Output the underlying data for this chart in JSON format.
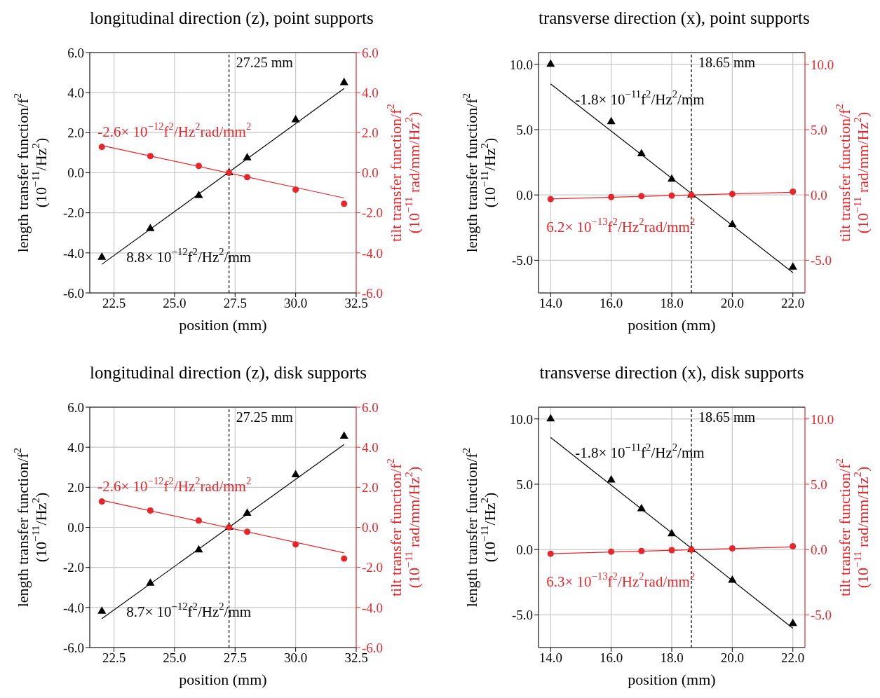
{
  "chart_data": [
    {
      "type": "scatter",
      "title": "longitudinal direction (z), point supports",
      "xlabel": "position (mm)",
      "ylabel": "length transfer function/f$^{2}$\n(10$^{−11}$/Hz$^{2}$)",
      "y2label": "tilt transfer function/f$^{2}$\n(10$^{−11}$ rad/mm/Hz$^{2}$)",
      "xlim": [
        21.5,
        32.5
      ],
      "xticks": [
        {
          "value": 22.5,
          "label": "22.5"
        },
        {
          "value": 25,
          "label": "25.0"
        },
        {
          "value": 27.5,
          "label": "27.5"
        },
        {
          "value": 30,
          "label": "30.0"
        },
        {
          "value": 32.5,
          "label": "32.5"
        }
      ],
      "ylim": [
        -6,
        6
      ],
      "yticks": [
        {
          "value": -6,
          "label": "-6.0"
        },
        {
          "value": -4,
          "label": "-4.0"
        },
        {
          "value": -2,
          "label": "-2.0"
        },
        {
          "value": 0,
          "label": "0.0"
        },
        {
          "value": 2,
          "label": "2.0"
        },
        {
          "value": 4,
          "label": "4.0"
        },
        {
          "value": 6,
          "label": "6.0"
        }
      ],
      "y2lim": [
        -6,
        6
      ],
      "y2ticks": [
        {
          "value": -6,
          "label": "-6.0"
        },
        {
          "value": -4,
          "label": "-4.0"
        },
        {
          "value": -2,
          "label": "-2.0"
        },
        {
          "value": 0,
          "label": "0.0"
        },
        {
          "value": 2,
          "label": "2.0"
        },
        {
          "value": 4,
          "label": "4.0"
        },
        {
          "value": 6,
          "label": "6.0"
        }
      ],
      "grid": true,
      "ref_lines": [
        {
          "axis": "x",
          "value": 27.25,
          "label": "27.25 mm",
          "color": "#000000",
          "line_style": "dashed"
        }
      ],
      "series": [
        {
          "color": "#000000",
          "marker": "triangle",
          "x": [
            22,
            24,
            26,
            27.25,
            28,
            30,
            32
          ],
          "values": [
            -4.22,
            -2.79,
            -1.14,
            0,
            0.74,
            2.64,
            4.5
          ]
        },
        {
          "axis": "y2",
          "color": "#e8262a",
          "marker": "circle",
          "x": [
            22,
            24,
            26,
            27.25,
            28,
            30,
            32
          ],
          "values": [
            1.29,
            0.83,
            0.34,
            0,
            -0.22,
            -0.84,
            -1.55
          ]
        },
        {
          "type": "line",
          "name": "8.8× 10$^{−12}$f$^{2}$/Hz$^{2}$/mm",
          "color": "#000000",
          "x": [
            22,
            32
          ],
          "values": [
            -4.57,
            4.21
          ]
        },
        {
          "type": "line",
          "name": "-2.6× 10$^{−12}$f$^{2}$/Hz$^{2}$rad/mm$^{2}$",
          "axis": "y2",
          "color": "#e8262a",
          "x": [
            22,
            32
          ],
          "values": [
            1.36,
            -1.26
          ]
        }
      ]
    },
    {
      "type": "scatter",
      "title": "transverse direction (x), point supports",
      "xlabel": "position (mm)",
      "ylabel": "length transfer function/f$^{2}$\n(10$^{−11}$/Hz$^{2}$)",
      "y2label": "tilt transfer function/f$^{2}$\n(10$^{−11}$ rad/mm/Hz$^{2}$)",
      "xlim": [
        13.6,
        22.4
      ],
      "xticks": [
        {
          "value": 14,
          "label": "14.0"
        },
        {
          "value": 16,
          "label": "16.0"
        },
        {
          "value": 18,
          "label": "18.0"
        },
        {
          "value": 20,
          "label": "20.0"
        },
        {
          "value": 22,
          "label": "22.0"
        }
      ],
      "ylim": [
        -7.5,
        10.9
      ],
      "yticks": [
        {
          "value": -5,
          "label": "-5.0"
        },
        {
          "value": 0,
          "label": "0.0"
        },
        {
          "value": 5,
          "label": "5.0"
        },
        {
          "value": 10,
          "label": "10.0"
        }
      ],
      "y2lim": [
        -7.5,
        10.9
      ],
      "y2ticks": [
        {
          "value": -5,
          "label": "-5.0"
        },
        {
          "value": 0,
          "label": "0.0"
        },
        {
          "value": 5,
          "label": "5.0"
        },
        {
          "value": 10,
          "label": "10.0"
        }
      ],
      "grid": true,
      "ref_lines": [
        {
          "axis": "x",
          "value": 18.65,
          "label": "18.65 mm",
          "color": "#000000",
          "line_style": "dashed"
        }
      ],
      "series": [
        {
          "color": "#000000",
          "marker": "triangle",
          "x": [
            14,
            16,
            17,
            18,
            18.65,
            20,
            22
          ],
          "values": [
            10,
            5.6,
            3.15,
            1.2,
            0,
            -2.27,
            -5.53
          ]
        },
        {
          "axis": "y2",
          "color": "#e8262a",
          "marker": "circle",
          "x": [
            14,
            16,
            17,
            18,
            18.65,
            20,
            22
          ],
          "values": [
            -0.32,
            -0.16,
            -0.09,
            -0.05,
            0,
            0.07,
            0.25
          ]
        },
        {
          "type": "line",
          "name": "-1.8× 10$^{−11}$f$^{2}$/Hz$^{2}$/mm",
          "color": "#000000",
          "x": [
            14,
            22
          ],
          "values": [
            8.5,
            -5.94
          ]
        },
        {
          "type": "line",
          "name": "6.2× 10$^{−13}$f$^{2}$/Hz$^{2}$rad/mm$^{2}$",
          "axis": "y2",
          "color": "#e8262a",
          "x": [
            14,
            22
          ],
          "values": [
            -0.3,
            0.21
          ]
        }
      ]
    },
    {
      "type": "scatter",
      "title": "longitudinal direction (z), disk supports",
      "xlabel": "position (mm)",
      "ylabel": "length transfer function/f$^{2}$\n(10$^{−11}$/Hz$^{2}$)",
      "y2label": "tilt transfer function/f$^{2}$\n(10$^{−11}$ rad/mm/Hz$^{2}$)",
      "xlim": [
        21.5,
        32.5
      ],
      "xticks": [
        {
          "value": 22.5,
          "label": "22.5"
        },
        {
          "value": 25,
          "label": "25.0"
        },
        {
          "value": 27.5,
          "label": "27.5"
        },
        {
          "value": 30,
          "label": "30.0"
        },
        {
          "value": 32.5,
          "label": "32.5"
        }
      ],
      "ylim": [
        -6,
        6
      ],
      "yticks": [
        {
          "value": -6,
          "label": "-6.0"
        },
        {
          "value": -4,
          "label": "-4.0"
        },
        {
          "value": -2,
          "label": "-2.0"
        },
        {
          "value": 0,
          "label": "0.0"
        },
        {
          "value": 2,
          "label": "2.0"
        },
        {
          "value": 4,
          "label": "4.0"
        },
        {
          "value": 6,
          "label": "6.0"
        }
      ],
      "y2lim": [
        -6,
        6
      ],
      "y2ticks": [
        {
          "value": -6,
          "label": "-6.0"
        },
        {
          "value": -4,
          "label": "-4.0"
        },
        {
          "value": -2,
          "label": "-2.0"
        },
        {
          "value": 0,
          "label": "0.0"
        },
        {
          "value": 2,
          "label": "2.0"
        },
        {
          "value": 4,
          "label": "4.0"
        },
        {
          "value": 6,
          "label": "6.0"
        }
      ],
      "grid": true,
      "ref_lines": [
        {
          "axis": "x",
          "value": 27.25,
          "label": "27.25 mm",
          "color": "#000000",
          "line_style": "dashed"
        }
      ],
      "series": [
        {
          "color": "#000000",
          "marker": "triangle",
          "x": [
            22,
            24,
            26,
            27.25,
            28,
            30,
            32
          ],
          "values": [
            -4.19,
            -2.79,
            -1.13,
            0,
            0.7,
            2.62,
            4.55
          ]
        },
        {
          "axis": "y2",
          "color": "#e8262a",
          "marker": "circle",
          "x": [
            22,
            24,
            26,
            27.25,
            28,
            30,
            32
          ],
          "values": [
            1.29,
            0.84,
            0.34,
            0,
            -0.22,
            -0.85,
            -1.56
          ]
        },
        {
          "type": "line",
          "name": "8.7× 10$^{−12}$f$^{2}$/Hz$^{2}$/mm",
          "color": "#000000",
          "x": [
            22,
            32
          ],
          "values": [
            -4.56,
            4.14
          ]
        },
        {
          "type": "line",
          "name": "-2.6× 10$^{−12}$f$^{2}$/Hz$^{2}$rad/mm$^{2}$",
          "axis": "y2",
          "color": "#e8262a",
          "x": [
            22,
            32
          ],
          "values": [
            1.35,
            -1.27
          ]
        }
      ]
    },
    {
      "type": "scatter",
      "title": "transverse direction (x), disk supports",
      "xlabel": "position (mm)",
      "ylabel": "length transfer function/f$^{2}$\n(10$^{−11}$/Hz$^{2}$)",
      "y2label": "tilt transfer function/f$^{2}$\n(10$^{−11}$ rad/mm/Hz$^{2}$)",
      "xlim": [
        13.6,
        22.4
      ],
      "xticks": [
        {
          "value": 14,
          "label": "14.0"
        },
        {
          "value": 16,
          "label": "16.0"
        },
        {
          "value": 18,
          "label": "18.0"
        },
        {
          "value": 20,
          "label": "20.0"
        },
        {
          "value": 22,
          "label": "22.0"
        }
      ],
      "ylim": [
        -7.5,
        10.9
      ],
      "yticks": [
        {
          "value": -5,
          "label": "-5.0"
        },
        {
          "value": 0,
          "label": "0.0"
        },
        {
          "value": 5,
          "label": "5.0"
        },
        {
          "value": 10,
          "label": "10.0"
        }
      ],
      "y2lim": [
        -7.5,
        10.9
      ],
      "y2ticks": [
        {
          "value": -5,
          "label": "-5.0"
        },
        {
          "value": 0,
          "label": "0.0"
        },
        {
          "value": 5,
          "label": "5.0"
        },
        {
          "value": 10,
          "label": "10.0"
        }
      ],
      "grid": true,
      "ref_lines": [
        {
          "axis": "x",
          "value": 18.65,
          "label": "18.65 mm",
          "color": "#000000",
          "line_style": "dashed"
        }
      ],
      "series": [
        {
          "color": "#000000",
          "marker": "triangle",
          "x": [
            14,
            16,
            17,
            18,
            18.65,
            20,
            22
          ],
          "values": [
            10,
            5.32,
            3.12,
            1.2,
            0,
            -2.35,
            -5.66
          ]
        },
        {
          "axis": "y2",
          "color": "#e8262a",
          "marker": "circle",
          "x": [
            14,
            16,
            17,
            18,
            18.65,
            20,
            22
          ],
          "values": [
            -0.32,
            -0.16,
            -0.11,
            -0.04,
            0,
            0.09,
            0.25
          ]
        },
        {
          "type": "line",
          "name": "-1.8× 10$^{−11}$f$^{2}$/Hz$^{2}$/mm",
          "color": "#000000",
          "x": [
            14,
            22
          ],
          "values": [
            8.58,
            -6.02
          ]
        },
        {
          "type": "line",
          "name": "6.3× 10$^{−13}$f$^{2}$/Hz$^{2}$rad/mm$^{2}$",
          "axis": "y2",
          "color": "#e8262a",
          "x": [
            14,
            22
          ],
          "values": [
            -0.32,
            0.2
          ]
        }
      ]
    }
  ]
}
